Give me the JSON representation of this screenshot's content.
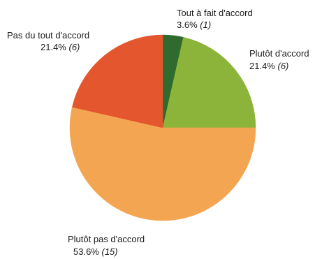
{
  "chart_data": {
    "type": "pie",
    "title": "",
    "slices": [
      {
        "label": "Tout à fait d'accord",
        "percent_label": "3.6%",
        "count_label": "(1)",
        "value": 1,
        "color": "#2f6a2e"
      },
      {
        "label": "Plutôt d'accord",
        "percent_label": "21.4%",
        "count_label": "(6)",
        "value": 6,
        "color": "#8cb43a"
      },
      {
        "label": "Plutôt pas d'accord",
        "percent_label": "53.6%",
        "count_label": "(15)",
        "value": 15,
        "color": "#f4a552"
      },
      {
        "label": "Pas du tout d'accord",
        "percent_label": "21.4%",
        "count_label": "(6)",
        "value": 6,
        "color": "#e4562e"
      }
    ],
    "start_angle_deg": 0,
    "direction": "clockwise",
    "legend": "none"
  }
}
